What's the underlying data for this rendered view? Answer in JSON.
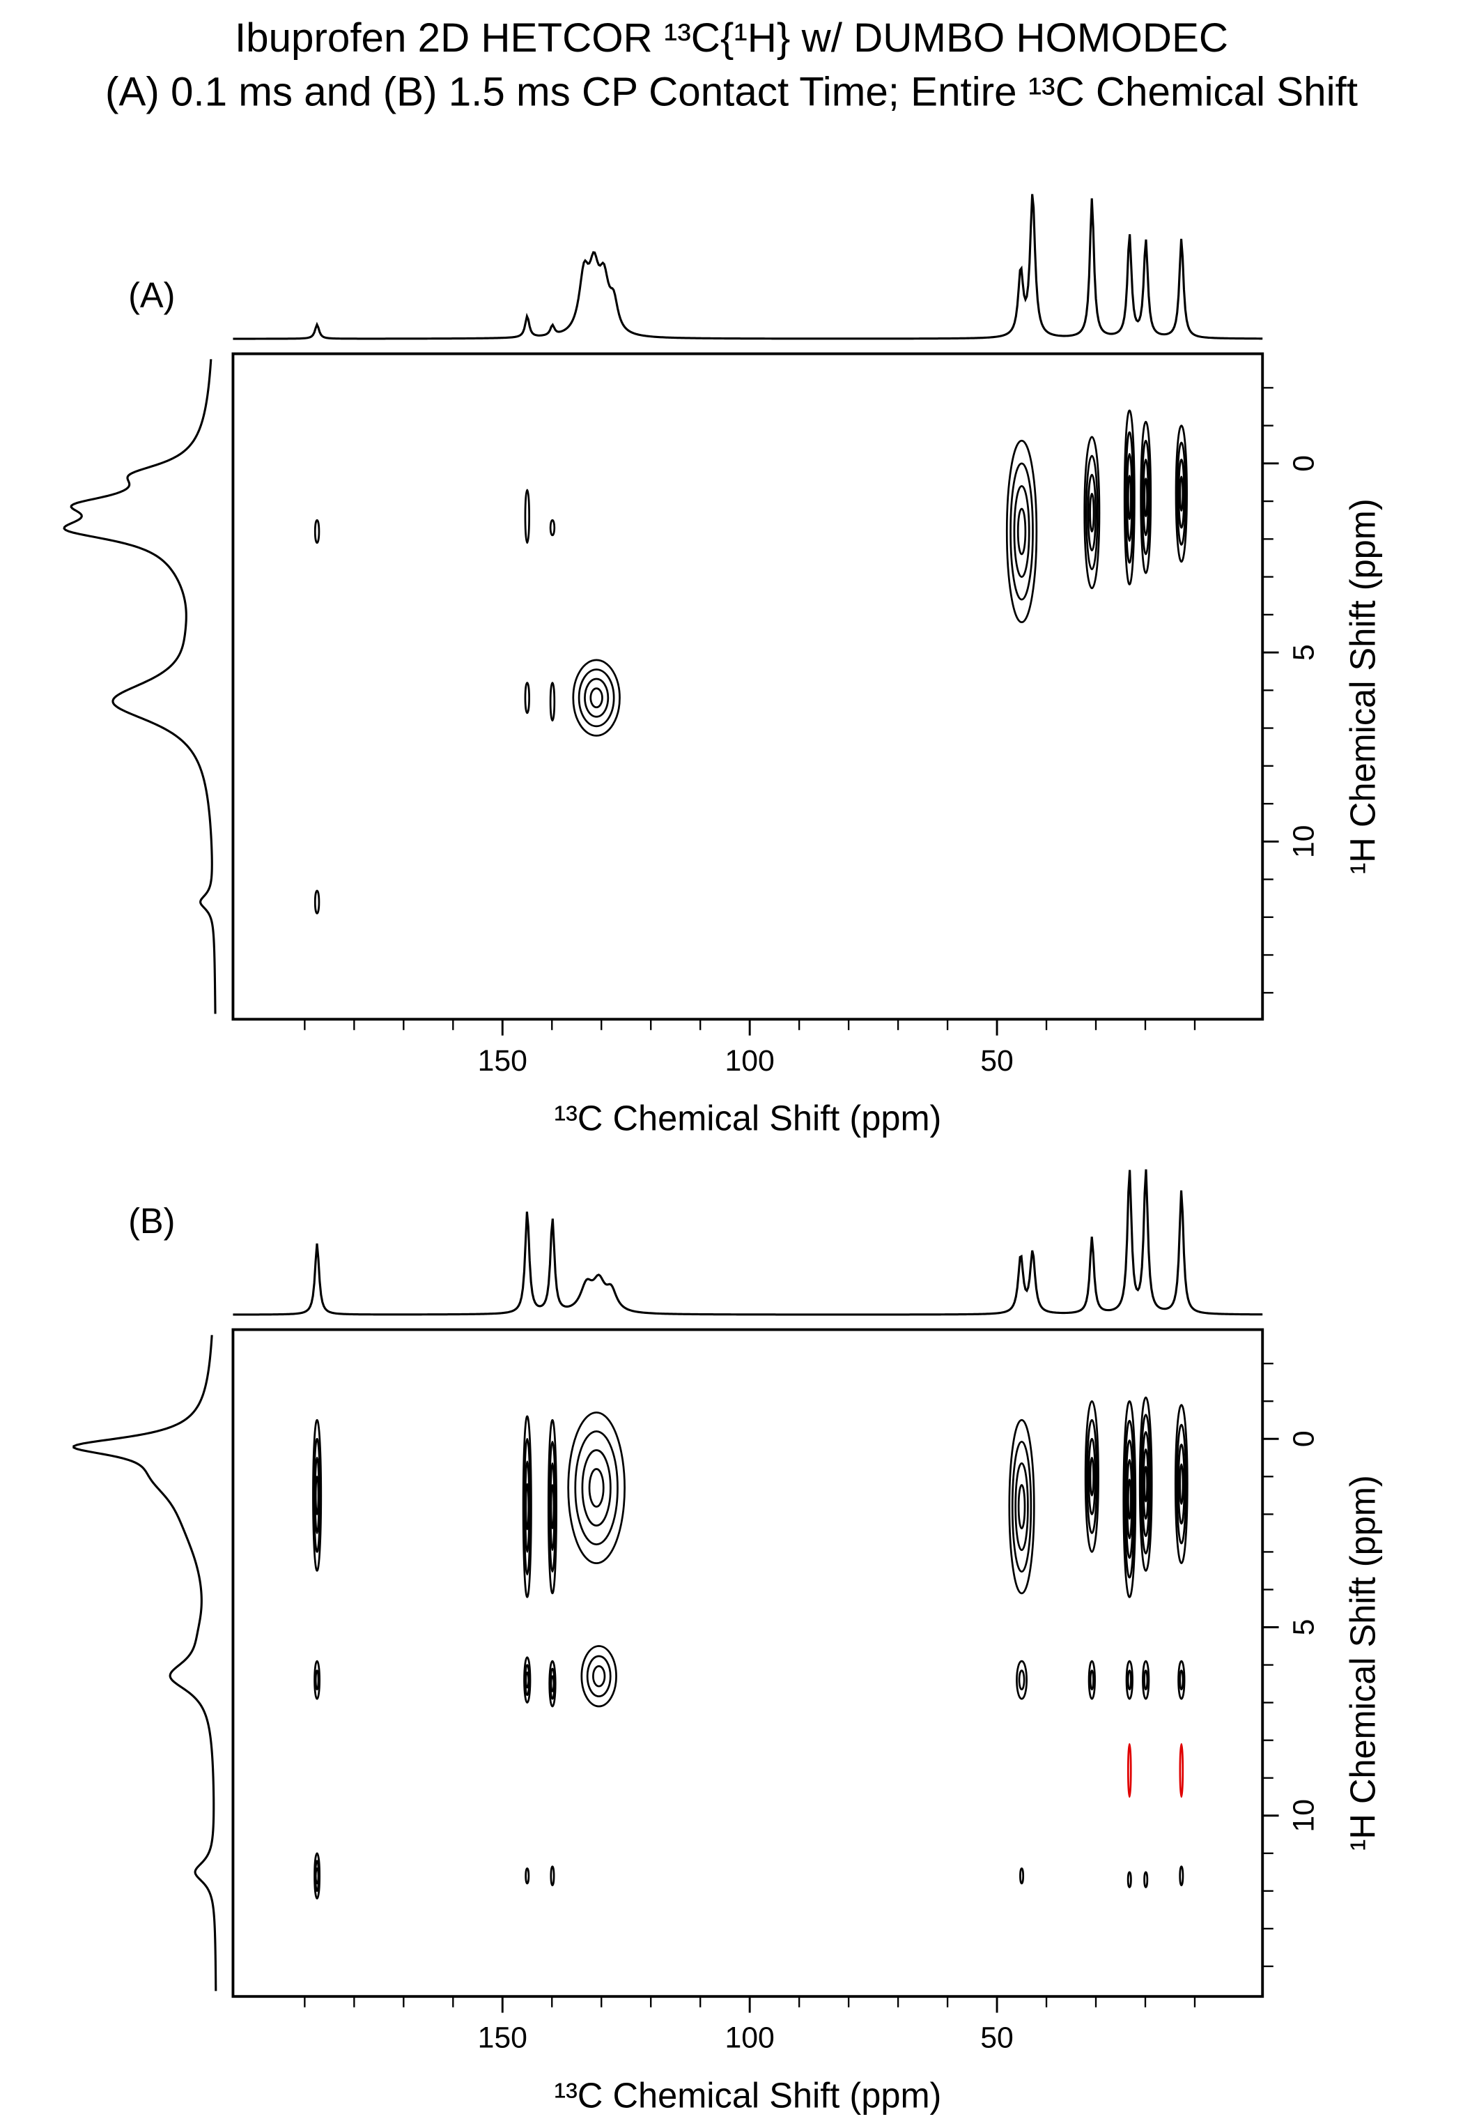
{
  "title": [
    "Ibuprofen 2D HETCOR ¹³C{¹H} w/ DUMBO HOMODEC",
    "(A) 0.1 ms and (B) 1.5 ms CP Contact Time; Entire ¹³C Chemical Shift"
  ],
  "chart_data": [
    {
      "type": "contour",
      "panel_label": "(A)",
      "x_label": "¹³C Chemical Shift (ppm)",
      "y_label": "¹H Chemical Shift (ppm)",
      "xlim": [
        204.5,
        -3.7
      ],
      "xticks": [
        150,
        100,
        50
      ],
      "x_minor_ticks": [
        190,
        180,
        170,
        160,
        140,
        130,
        120,
        110,
        90,
        80,
        70,
        60,
        40,
        30,
        20,
        10
      ],
      "ylim": [
        -2.9,
        14.7
      ],
      "yticks": [
        0,
        5,
        10
      ],
      "y_minor_ticks": [
        -2,
        -1,
        1,
        2,
        3,
        4,
        6,
        7,
        8,
        9,
        11,
        12,
        13,
        14
      ],
      "color": "#000000",
      "top_projection": [
        {
          "ppm": 187.5,
          "intensity": 0.1,
          "width": 0.5
        },
        {
          "ppm": 145,
          "intensity": 0.15,
          "width": 0.5
        },
        {
          "ppm": 139.9,
          "intensity": 0.07,
          "width": 0.5
        },
        {
          "ppm": 133.5,
          "intensity": 0.4,
          "width": 1.2
        },
        {
          "ppm": 131.5,
          "intensity": 0.4,
          "width": 1.2
        },
        {
          "ppm": 129.5,
          "intensity": 0.35,
          "width": 1.2
        },
        {
          "ppm": 127.5,
          "intensity": 0.2,
          "width": 1.0
        },
        {
          "ppm": 45.2,
          "intensity": 0.45,
          "width": 0.6
        },
        {
          "ppm": 42.8,
          "intensity": 1.0,
          "width": 0.6
        },
        {
          "ppm": 30.8,
          "intensity": 0.98,
          "width": 0.5
        },
        {
          "ppm": 23.2,
          "intensity": 0.72,
          "width": 0.5
        },
        {
          "ppm": 19.9,
          "intensity": 0.68,
          "width": 0.5
        },
        {
          "ppm": 12.7,
          "intensity": 0.7,
          "width": 0.5
        }
      ],
      "left_projection": [
        {
          "ppm": 0.3,
          "intensity": 0.35,
          "width": 0.35
        },
        {
          "ppm": 1.1,
          "intensity": 0.5,
          "width": 0.3
        },
        {
          "ppm": 1.75,
          "intensity": 0.65,
          "width": 0.35
        },
        {
          "ppm": 1.3,
          "intensity": 0.3,
          "width": 1.0
        },
        {
          "ppm": 2.6,
          "intensity": 0.12,
          "width": 1.5
        },
        {
          "ppm": 4.5,
          "intensity": 0.05,
          "width": 1.0
        },
        {
          "ppm": 6.3,
          "intensity": 0.72,
          "width": 0.7
        },
        {
          "ppm": 11.6,
          "intensity": 0.1,
          "width": 0.25
        }
      ],
      "cross_peaks": [
        {
          "x": 187.5,
          "y": 1.8,
          "x_width": 0.4,
          "y_width": 0.3,
          "levels": 1
        },
        {
          "x": 145,
          "y": 1.4,
          "x_width": 0.4,
          "y_width": 0.7,
          "levels": 1
        },
        {
          "x": 139.9,
          "y": 1.7,
          "x_width": 0.4,
          "y_width": 0.2,
          "levels": 1
        },
        {
          "x": 145,
          "y": 6.2,
          "x_width": 0.4,
          "y_width": 0.4,
          "levels": 1
        },
        {
          "x": 139.9,
          "y": 6.3,
          "x_width": 0.4,
          "y_width": 0.5,
          "levels": 1
        },
        {
          "x": 131,
          "y": 6.2,
          "x_width": 4.7,
          "y_width": 1.0,
          "levels": 4
        },
        {
          "x": 187.5,
          "y": 11.6,
          "x_width": 0.4,
          "y_width": 0.3,
          "levels": 1
        },
        {
          "x": 45,
          "y": 1.8,
          "x_width": 3.0,
          "y_width": 2.4,
          "levels": 4
        },
        {
          "x": 30.8,
          "y": 1.3,
          "x_width": 1.5,
          "y_width": 2.0,
          "levels": 4
        },
        {
          "x": 23.2,
          "y": 0.9,
          "x_width": 1.0,
          "y_width": 2.3,
          "levels": 4
        },
        {
          "x": 19.9,
          "y": 0.9,
          "x_width": 1.0,
          "y_width": 2.0,
          "levels": 4
        },
        {
          "x": 12.7,
          "y": 0.8,
          "x_width": 1.1,
          "y_width": 1.8,
          "levels": 4
        }
      ]
    },
    {
      "type": "contour",
      "panel_label": "(B)",
      "x_label": "¹³C Chemical Shift (ppm)",
      "y_label": "¹H Chemical Shift (ppm)",
      "xlim": [
        204.5,
        -3.7
      ],
      "xticks": [
        150,
        100,
        50
      ],
      "x_minor_ticks": [
        190,
        180,
        170,
        160,
        140,
        130,
        120,
        110,
        90,
        80,
        70,
        60,
        40,
        30,
        20,
        10
      ],
      "ylim": [
        -2.9,
        14.8
      ],
      "yticks": [
        0,
        5,
        10
      ],
      "y_minor_ticks": [
        -2,
        -1,
        1,
        2,
        3,
        4,
        6,
        7,
        8,
        9,
        11,
        12,
        13,
        14
      ],
      "color": "#000000",
      "top_projection": [
        {
          "ppm": 187.5,
          "intensity": 0.5,
          "width": 0.5
        },
        {
          "ppm": 145,
          "intensity": 0.72,
          "width": 0.5
        },
        {
          "ppm": 139.9,
          "intensity": 0.66,
          "width": 0.5
        },
        {
          "ppm": 133,
          "intensity": 0.18,
          "width": 1.5
        },
        {
          "ppm": 130.5,
          "intensity": 0.2,
          "width": 1.5
        },
        {
          "ppm": 128,
          "intensity": 0.14,
          "width": 1.3
        },
        {
          "ppm": 45.2,
          "intensity": 0.4,
          "width": 0.6
        },
        {
          "ppm": 42.8,
          "intensity": 0.43,
          "width": 0.6
        },
        {
          "ppm": 30.8,
          "intensity": 0.54,
          "width": 0.5
        },
        {
          "ppm": 23.2,
          "intensity": 1.0,
          "width": 0.5
        },
        {
          "ppm": 19.9,
          "intensity": 1.0,
          "width": 0.5
        },
        {
          "ppm": 12.7,
          "intensity": 0.87,
          "width": 0.5
        }
      ],
      "left_projection": [
        {
          "ppm": 0.2,
          "intensity": 0.85,
          "width": 0.3
        },
        {
          "ppm": 1.0,
          "intensity": 0.3,
          "width": 0.8
        },
        {
          "ppm": 2.2,
          "intensity": 0.15,
          "width": 1.5
        },
        {
          "ppm": 5.2,
          "intensity": 0.05,
          "width": 0.8
        },
        {
          "ppm": 6.3,
          "intensity": 0.3,
          "width": 0.5
        },
        {
          "ppm": 11.5,
          "intensity": 0.15,
          "width": 0.35
        }
      ],
      "cross_peaks": [
        {
          "x": 187.5,
          "y": 1.5,
          "x_width": 0.8,
          "y_width": 2.0,
          "levels": 4
        },
        {
          "x": 145,
          "y": 1.8,
          "x_width": 0.8,
          "y_width": 2.4,
          "levels": 4
        },
        {
          "x": 139.9,
          "y": 1.8,
          "x_width": 0.8,
          "y_width": 2.3,
          "levels": 4
        },
        {
          "x": 131,
          "y": 1.3,
          "x_width": 5.7,
          "y_width": 2.0,
          "levels": 4
        },
        {
          "x": 45,
          "y": 1.8,
          "x_width": 2.5,
          "y_width": 2.3,
          "levels": 4
        },
        {
          "x": 30.8,
          "y": 1.0,
          "x_width": 1.3,
          "y_width": 2.0,
          "levels": 4
        },
        {
          "x": 23.2,
          "y": 1.6,
          "x_width": 1.2,
          "y_width": 2.6,
          "levels": 5
        },
        {
          "x": 19.9,
          "y": 1.2,
          "x_width": 1.2,
          "y_width": 2.3,
          "levels": 5
        },
        {
          "x": 12.7,
          "y": 1.2,
          "x_width": 1.2,
          "y_width": 2.1,
          "levels": 4
        },
        {
          "x": 187.5,
          "y": 6.4,
          "x_width": 0.5,
          "y_width": 0.5,
          "levels": 2
        },
        {
          "x": 145,
          "y": 6.4,
          "x_width": 0.6,
          "y_width": 0.6,
          "levels": 3
        },
        {
          "x": 139.9,
          "y": 6.5,
          "x_width": 0.6,
          "y_width": 0.6,
          "levels": 3
        },
        {
          "x": 130.5,
          "y": 6.3,
          "x_width": 3.5,
          "y_width": 0.8,
          "levels": 3
        },
        {
          "x": 45,
          "y": 6.4,
          "x_width": 1.0,
          "y_width": 0.5,
          "levels": 2
        },
        {
          "x": 30.8,
          "y": 6.4,
          "x_width": 0.6,
          "y_width": 0.5,
          "levels": 2
        },
        {
          "x": 23.2,
          "y": 6.4,
          "x_width": 0.6,
          "y_width": 0.5,
          "levels": 2
        },
        {
          "x": 19.9,
          "y": 6.4,
          "x_width": 0.6,
          "y_width": 0.5,
          "levels": 2
        },
        {
          "x": 12.7,
          "y": 6.4,
          "x_width": 0.6,
          "y_width": 0.5,
          "levels": 2
        },
        {
          "x": 187.5,
          "y": 11.6,
          "x_width": 0.5,
          "y_width": 0.6,
          "levels": 3
        },
        {
          "x": 145,
          "y": 11.6,
          "x_width": 0.3,
          "y_width": 0.2,
          "levels": 1
        },
        {
          "x": 139.9,
          "y": 11.6,
          "x_width": 0.3,
          "y_width": 0.25,
          "levels": 1
        },
        {
          "x": 45,
          "y": 11.6,
          "x_width": 0.3,
          "y_width": 0.2,
          "levels": 1
        },
        {
          "x": 23.2,
          "y": 11.7,
          "x_width": 0.3,
          "y_width": 0.2,
          "levels": 1
        },
        {
          "x": 19.9,
          "y": 11.7,
          "x_width": 0.3,
          "y_width": 0.2,
          "levels": 1
        },
        {
          "x": 12.7,
          "y": 11.6,
          "x_width": 0.3,
          "y_width": 0.25,
          "levels": 1
        },
        {
          "x": 23.2,
          "y": 8.8,
          "x_width": 0.2,
          "y_width": 0.7,
          "levels": 1,
          "color": "#e00000"
        },
        {
          "x": 12.7,
          "y": 8.8,
          "x_width": 0.2,
          "y_width": 0.7,
          "levels": 1,
          "color": "#e00000"
        }
      ]
    }
  ]
}
